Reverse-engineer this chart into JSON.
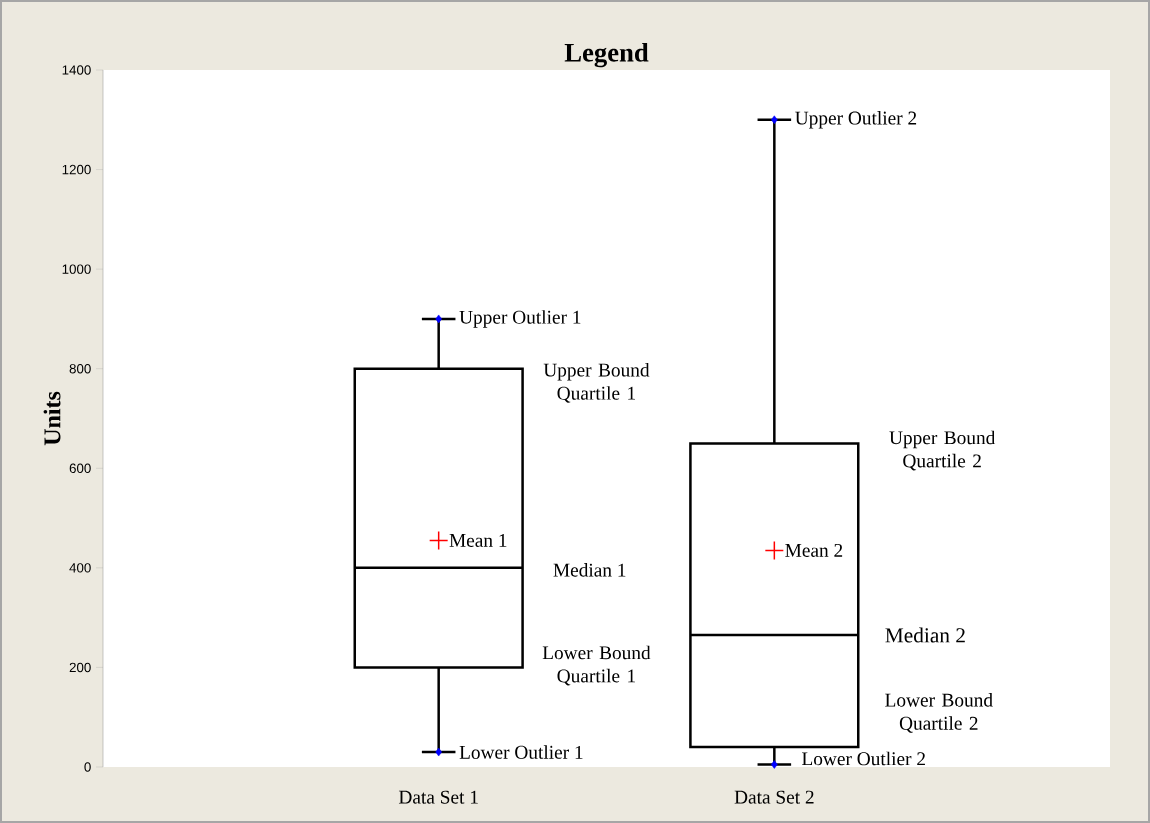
{
  "chart_data": {
    "type": "box",
    "title": "Legend",
    "ylabel": "Units",
    "categories": [
      "Data Set 1",
      "Data Set 2"
    ],
    "color": "#000000",
    "marker": "diamond",
    "boxes": [
      {
        "low": 30,
        "q1": 200,
        "median": 400,
        "q3": 800,
        "high": 900,
        "mean": 455
      },
      {
        "low": 5,
        "q1": 40,
        "median": 265,
        "q3": 650,
        "high": 1300,
        "mean": 435
      }
    ],
    "ylim": [
      0,
      1400
    ],
    "yticks": [
      0,
      200,
      400,
      600,
      800,
      1000,
      1200,
      1400
    ],
    "annotations": [
      {
        "text": "Upper Outlier 1",
        "x": "Data Set 1",
        "y": 900
      },
      "Upper Bound Quartile 1",
      "Mean 1",
      "Median 1",
      "Lower Bound Quartile 1",
      {
        "text": "Lower Outlier 1",
        "x": "Data Set 1",
        "y": 30
      },
      {
        "text": "Upper Outlier 2",
        "x": "Data Set 2",
        "y": 1300
      },
      "Upper Bound Quartile 2",
      "Mean 2",
      "Median 2",
      "Lower Bound Quartile 2",
      {
        "text": "Lower Outlier 2",
        "x": "Data Set 2",
        "y": 5
      }
    ]
  }
}
